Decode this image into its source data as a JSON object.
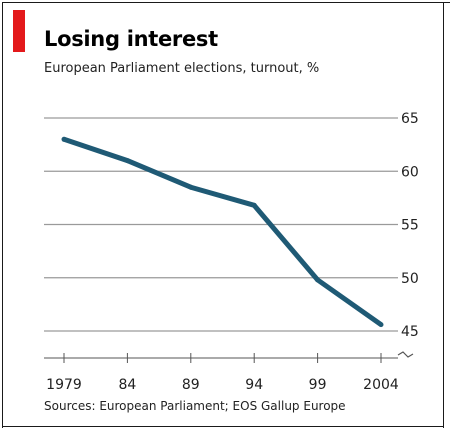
{
  "chart_data": {
    "type": "line",
    "title": "Losing interest",
    "subtitle": "European Parliament elections, turnout, %",
    "source": "Sources: European Parliament; EOS Gallup Europe",
    "categories": [
      "1979",
      "84",
      "89",
      "94",
      "99",
      "2004"
    ],
    "series": [
      {
        "values": [
          63.0,
          61.0,
          58.5,
          56.8,
          49.8,
          45.6
        ]
      }
    ],
    "y_ticks": [
      "65",
      "60",
      "55",
      "50",
      "45"
    ],
    "ylim": [
      45,
      65
    ],
    "grid": true,
    "y_axis_side": "right",
    "axis_break": true
  },
  "colors": {
    "accent": "#e3191b",
    "line": "#1f5a75",
    "grid": "#9a9a9a",
    "axis": "#555555"
  }
}
